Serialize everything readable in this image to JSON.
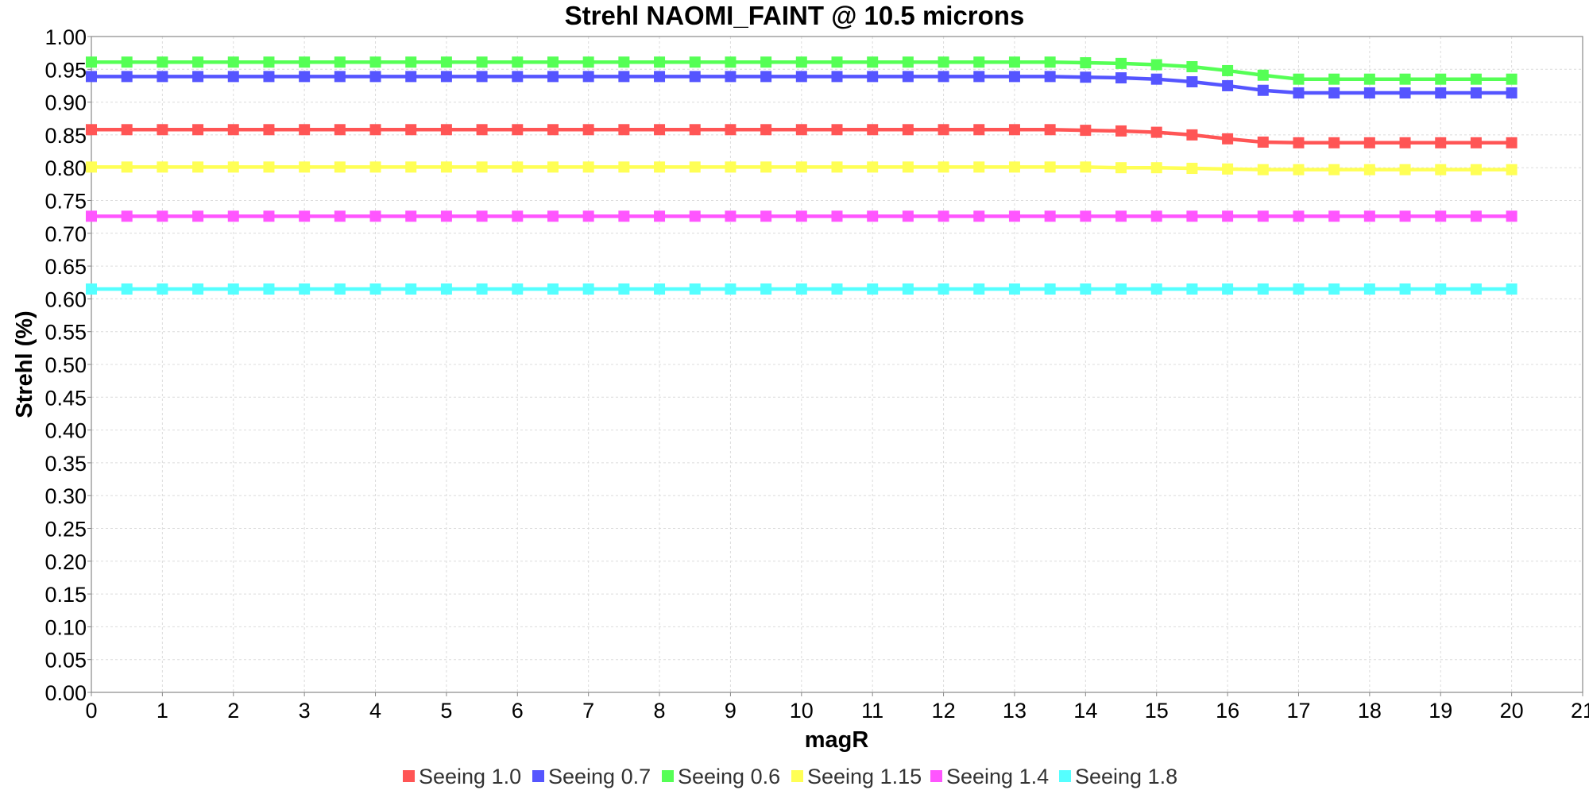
{
  "chart_data": {
    "type": "line",
    "title": "Strehl NAOMI_FAINT @ 10.5 microns",
    "xlabel": "magR",
    "ylabel": "Strehl (%)",
    "xlim": [
      0,
      21
    ],
    "ylim": [
      0,
      1
    ],
    "x_ticks": [
      "0",
      "1",
      "2",
      "3",
      "4",
      "5",
      "6",
      "7",
      "8",
      "9",
      "10",
      "11",
      "12",
      "13",
      "14",
      "15",
      "16",
      "17",
      "18",
      "19",
      "20",
      "21"
    ],
    "y_ticks": [
      "0.00",
      "0.05",
      "0.10",
      "0.15",
      "0.20",
      "0.25",
      "0.30",
      "0.35",
      "0.40",
      "0.45",
      "0.50",
      "0.55",
      "0.60",
      "0.65",
      "0.70",
      "0.75",
      "0.80",
      "0.85",
      "0.90",
      "0.95",
      "1.00"
    ],
    "grid": true,
    "legend_position": "bottom",
    "marker": "square",
    "x": [
      0,
      0.5,
      1,
      1.5,
      2,
      2.5,
      3,
      3.5,
      4,
      4.5,
      5,
      5.5,
      6,
      6.5,
      7,
      7.5,
      8,
      8.5,
      9,
      9.5,
      10,
      10.5,
      11,
      11.5,
      12,
      12.5,
      13,
      13.5,
      14,
      14.5,
      15,
      15.5,
      16,
      16.5,
      17,
      17.5,
      18,
      18.5,
      19,
      19.5,
      20
    ],
    "series": [
      {
        "name": "Seeing 1.0",
        "color": "#ff5555",
        "values": [
          0.858,
          0.858,
          0.858,
          0.858,
          0.858,
          0.858,
          0.858,
          0.858,
          0.858,
          0.858,
          0.858,
          0.858,
          0.858,
          0.858,
          0.858,
          0.858,
          0.858,
          0.858,
          0.858,
          0.858,
          0.858,
          0.858,
          0.858,
          0.858,
          0.858,
          0.858,
          0.858,
          0.858,
          0.857,
          0.856,
          0.854,
          0.85,
          0.844,
          0.839,
          0.838,
          0.838,
          0.838,
          0.838,
          0.838,
          0.838,
          0.838
        ]
      },
      {
        "name": "Seeing 0.7",
        "color": "#5555ff",
        "values": [
          0.939,
          0.939,
          0.939,
          0.939,
          0.939,
          0.939,
          0.939,
          0.939,
          0.939,
          0.939,
          0.939,
          0.939,
          0.939,
          0.939,
          0.939,
          0.939,
          0.939,
          0.939,
          0.939,
          0.939,
          0.939,
          0.939,
          0.939,
          0.939,
          0.939,
          0.939,
          0.939,
          0.939,
          0.938,
          0.937,
          0.935,
          0.931,
          0.925,
          0.918,
          0.914,
          0.914,
          0.914,
          0.914,
          0.914,
          0.914,
          0.914
        ]
      },
      {
        "name": "Seeing 0.6",
        "color": "#55ff55",
        "values": [
          0.961,
          0.961,
          0.961,
          0.961,
          0.961,
          0.961,
          0.961,
          0.961,
          0.961,
          0.961,
          0.961,
          0.961,
          0.961,
          0.961,
          0.961,
          0.961,
          0.961,
          0.961,
          0.961,
          0.961,
          0.961,
          0.961,
          0.961,
          0.961,
          0.961,
          0.961,
          0.961,
          0.961,
          0.96,
          0.959,
          0.957,
          0.954,
          0.948,
          0.941,
          0.935,
          0.935,
          0.935,
          0.935,
          0.935,
          0.935,
          0.935
        ]
      },
      {
        "name": "Seeing 1.15",
        "color": "#ffff55",
        "values": [
          0.801,
          0.801,
          0.801,
          0.801,
          0.801,
          0.801,
          0.801,
          0.801,
          0.801,
          0.801,
          0.801,
          0.801,
          0.801,
          0.801,
          0.801,
          0.801,
          0.801,
          0.801,
          0.801,
          0.801,
          0.801,
          0.801,
          0.801,
          0.801,
          0.801,
          0.801,
          0.801,
          0.801,
          0.801,
          0.8,
          0.8,
          0.799,
          0.798,
          0.797,
          0.797,
          0.797,
          0.797,
          0.797,
          0.797,
          0.797,
          0.797
        ]
      },
      {
        "name": "Seeing 1.4",
        "color": "#ff55ff",
        "values": [
          0.726,
          0.726,
          0.726,
          0.726,
          0.726,
          0.726,
          0.726,
          0.726,
          0.726,
          0.726,
          0.726,
          0.726,
          0.726,
          0.726,
          0.726,
          0.726,
          0.726,
          0.726,
          0.726,
          0.726,
          0.726,
          0.726,
          0.726,
          0.726,
          0.726,
          0.726,
          0.726,
          0.726,
          0.726,
          0.726,
          0.726,
          0.726,
          0.726,
          0.726,
          0.726,
          0.726,
          0.726,
          0.726,
          0.726,
          0.726,
          0.726
        ]
      },
      {
        "name": "Seeing 1.8",
        "color": "#55ffff",
        "values": [
          0.615,
          0.615,
          0.615,
          0.615,
          0.615,
          0.615,
          0.615,
          0.615,
          0.615,
          0.615,
          0.615,
          0.615,
          0.615,
          0.615,
          0.615,
          0.615,
          0.615,
          0.615,
          0.615,
          0.615,
          0.615,
          0.615,
          0.615,
          0.615,
          0.615,
          0.615,
          0.615,
          0.615,
          0.615,
          0.615,
          0.615,
          0.615,
          0.615,
          0.615,
          0.615,
          0.615,
          0.615,
          0.615,
          0.615,
          0.615,
          0.615
        ]
      }
    ]
  }
}
